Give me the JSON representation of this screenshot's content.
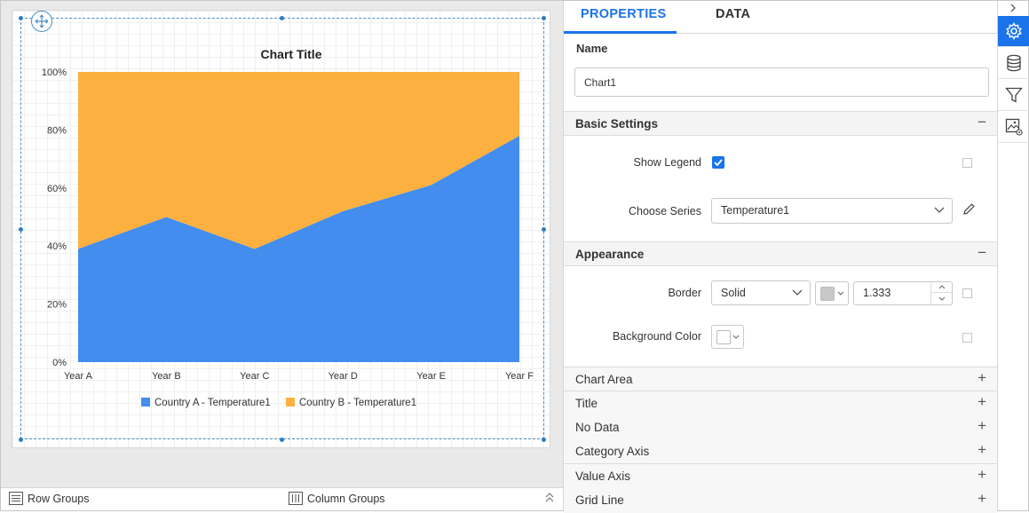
{
  "chart_data": {
    "type": "area",
    "stacking": "100%",
    "title": "Chart Title",
    "categories": [
      "Year A",
      "Year B",
      "Year C",
      "Year D",
      "Year E",
      "Year F"
    ],
    "series": [
      {
        "name": "Country A - Temperature1",
        "color": "#428dee",
        "values": [
          39,
          50,
          39,
          52,
          61,
          78
        ]
      },
      {
        "name": "Country B - Temperature1",
        "color": "#fbb040",
        "values": [
          61,
          50,
          61,
          48,
          39,
          22
        ]
      }
    ],
    "y_ticks": [
      "0%",
      "20%",
      "40%",
      "60%",
      "80%",
      "100%"
    ],
    "ylim": [
      0,
      100
    ],
    "grid": false,
    "legend_position": "bottom"
  },
  "groups_bar": {
    "row_groups": "Row Groups",
    "column_groups": "Column Groups"
  },
  "panel": {
    "tabs": [
      "PROPERTIES",
      "DATA"
    ],
    "name_label": "Name",
    "name_value": "Chart1",
    "basic_settings": {
      "title": "Basic Settings",
      "toggle": "−",
      "show_legend_label": "Show Legend",
      "show_legend_checked": true,
      "choose_series_label": "Choose Series",
      "choose_series_value": "Temperature1"
    },
    "appearance": {
      "title": "Appearance",
      "toggle": "−",
      "border_label": "Border",
      "border_style": "Solid",
      "border_color": "#c8c8c8",
      "border_width": "1.333",
      "background_label": "Background Color",
      "background_color": "#ffffff"
    },
    "sections": [
      {
        "title": "Chart Area",
        "toggle": "+"
      },
      {
        "title": "Title",
        "toggle": "+"
      },
      {
        "title": "No Data",
        "toggle": "+"
      },
      {
        "title": "Category Axis",
        "toggle": "+"
      },
      {
        "title": "Value Axis",
        "toggle": "+"
      },
      {
        "title": "Grid Line",
        "toggle": "+"
      }
    ]
  },
  "toolbar": {
    "icons": [
      "gear-icon",
      "database-icon",
      "filter-icon",
      "image-settings-icon"
    ],
    "active": "gear-icon",
    "accent": "#1a73e8"
  }
}
